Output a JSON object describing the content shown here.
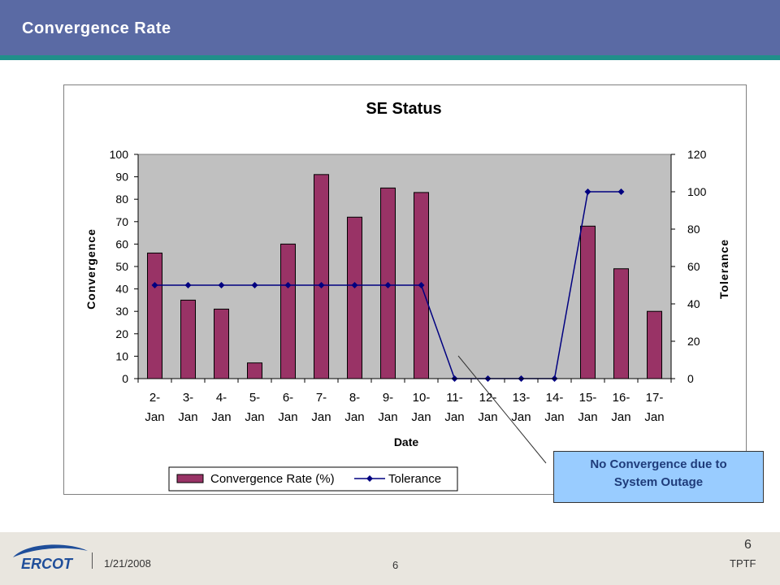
{
  "slide": {
    "title": "Convergence Rate",
    "callout_line1": "No Convergence due to",
    "callout_line2": "System Outage"
  },
  "footer": {
    "logo_text": "ERCOT",
    "date": "1/21/2008",
    "page_center": "6",
    "page_right": "6",
    "org": "TPTF"
  },
  "colors": {
    "header_bg": "#5a6aa4",
    "header_stripe": "#1f8f8a",
    "bar_fill": "#993366",
    "line_color": "#000080",
    "plot_bg": "#c0c0c0",
    "callout_bg": "#99ccff"
  },
  "chart_data": {
    "type": "bar",
    "title": "SE Status",
    "xlabel": "Date",
    "ylabel": "Convergence",
    "y2label": "Tolerance",
    "ylim": [
      0,
      100
    ],
    "y2lim": [
      0,
      120
    ],
    "yticks": [
      0,
      10,
      20,
      30,
      40,
      50,
      60,
      70,
      80,
      90,
      100
    ],
    "y2ticks": [
      0,
      20,
      40,
      60,
      80,
      100,
      120
    ],
    "grid": false,
    "legend_position": "bottom",
    "categories": [
      [
        "2-",
        "Jan"
      ],
      [
        "3-",
        "Jan"
      ],
      [
        "4-",
        "Jan"
      ],
      [
        "5-",
        "Jan"
      ],
      [
        "6-",
        "Jan"
      ],
      [
        "7-",
        "Jan"
      ],
      [
        "8-",
        "Jan"
      ],
      [
        "9-",
        "Jan"
      ],
      [
        "10-",
        "Jan"
      ],
      [
        "11-",
        "Jan"
      ],
      [
        "12-",
        "Jan"
      ],
      [
        "13-",
        "Jan"
      ],
      [
        "14-",
        "Jan"
      ],
      [
        "15-",
        "Jan"
      ],
      [
        "16-",
        "Jan"
      ],
      [
        "17-",
        "Jan"
      ]
    ],
    "series": [
      {
        "name": "Convergence Rate (%)",
        "type": "bar",
        "axis": "left",
        "values": [
          56,
          35,
          31,
          7,
          60,
          91,
          72,
          85,
          83,
          0,
          0,
          0,
          0,
          68,
          49,
          30
        ]
      },
      {
        "name": "Tolerance",
        "type": "line",
        "axis": "right",
        "values": [
          50,
          50,
          50,
          50,
          50,
          50,
          50,
          50,
          50,
          0,
          0,
          0,
          0,
          100,
          100,
          null
        ]
      }
    ]
  }
}
